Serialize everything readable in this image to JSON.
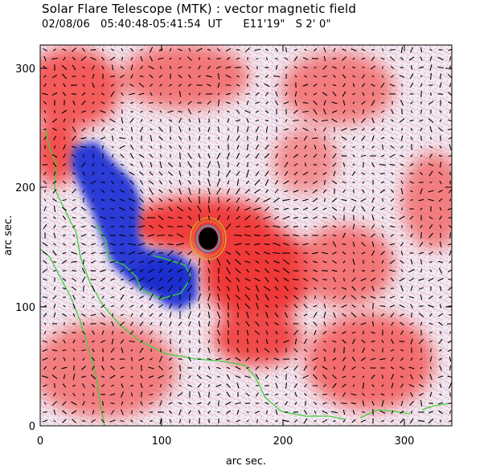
{
  "header": {
    "title": "Solar Flare Telescope (MTK) : vector magnetic field",
    "subtitle": "02/08/06   05:40:48-05:41:54  UT      E11'19\"   S 2' 0\""
  },
  "axes": {
    "xlabel": "arc sec.",
    "ylabel": "arc sec.",
    "xlim": [
      0,
      340
    ],
    "ylim": [
      0,
      320
    ],
    "xticks": [
      "0",
      "100",
      "200",
      "300"
    ],
    "yticks": [
      "0",
      "100",
      "200",
      "300"
    ]
  },
  "colors": {
    "positive_field": "#f04a4a",
    "negative_field": "#2d3dd8",
    "neutral_line": "#3fd03f",
    "vectors": "#000000",
    "spot": "#000000",
    "contours": [
      "#e07a20",
      "#d2b22a",
      "#3aa0e0"
    ]
  }
}
